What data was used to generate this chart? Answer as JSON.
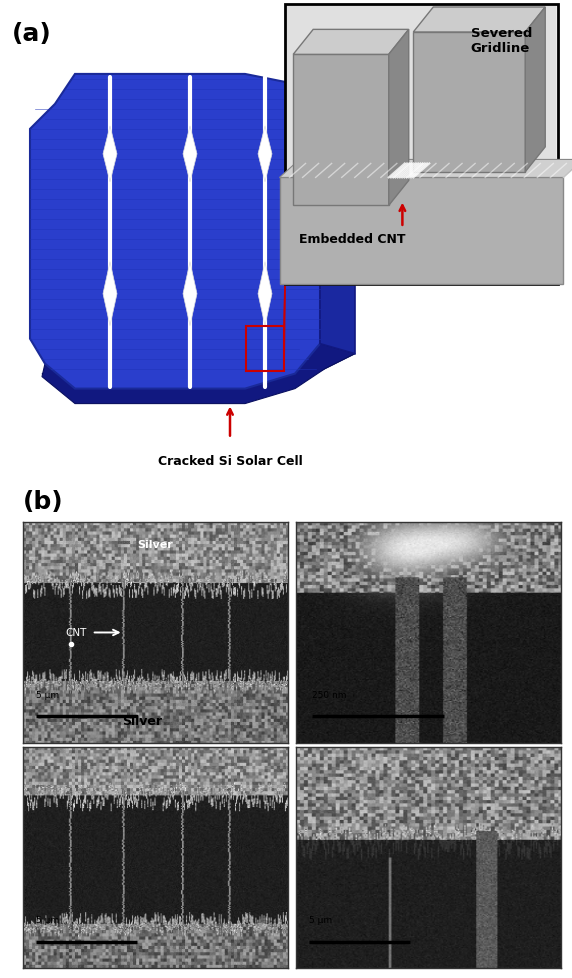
{
  "fig_width": 5.72,
  "fig_height": 9.79,
  "bg_color": "#ffffff",
  "panel_a_label": "(a)",
  "panel_b_label": "(b)",
  "label_fontsize": 18,
  "label_fontweight": "bold",
  "solar_cell_label": "Cracked Si Solar Cell",
  "embedded_cnt_label": "Embedded CNT",
  "severed_gridline_label": "Severed\nGridline",
  "silver_top_label": "Silver",
  "silver_bottom_label": "Silver",
  "cnt_label": "CNT",
  "scale_5um_label": "5 μm",
  "scale_250nm_label": "250 nm",
  "arrow_color": "#cc0000"
}
